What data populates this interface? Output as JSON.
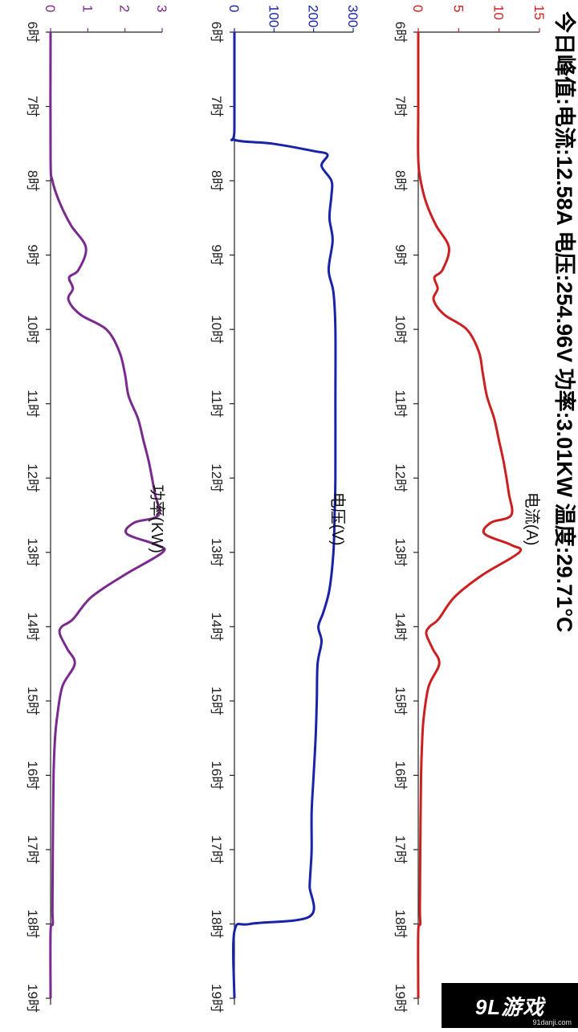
{
  "summary": "今日峰值:电流:12.58A   电压:254.96V   功率:3.01KW   温度:29.71°C",
  "time_ticks": [
    "6时",
    "7时",
    "8时",
    "9时",
    "10时",
    "11时",
    "12时",
    "13时",
    "14时",
    "15时",
    "16时",
    "17时",
    "18时",
    "19时"
  ],
  "watermark": {
    "logo": "9L游戏",
    "site": "91danji.com"
  },
  "chart_data": [
    {
      "type": "line",
      "title": "电流(A)",
      "color": "#cc1f1f",
      "ylim": [
        0,
        15
      ],
      "yticks": [
        0,
        5,
        10,
        15
      ],
      "xlim": [
        6,
        19
      ],
      "x": [
        6,
        7,
        7.7,
        8,
        8.3,
        8.6,
        8.9,
        9.2,
        9.3,
        9.45,
        9.6,
        9.8,
        10.0,
        10.3,
        10.6,
        10.9,
        11.2,
        11.5,
        11.8,
        12.2,
        12.5,
        12.6,
        12.75,
        12.9,
        13.0,
        13.3,
        13.6,
        13.9,
        14.0,
        14.1,
        14.3,
        14.5,
        14.8,
        15.2,
        15.5,
        16,
        17,
        17.8,
        18.0,
        18.1,
        19
      ],
      "values": [
        0,
        0,
        0,
        0.3,
        1.0,
        2.2,
        3.8,
        3.0,
        2.0,
        2.4,
        1.9,
        3.2,
        6.0,
        7.5,
        8.0,
        8.5,
        9.4,
        10.0,
        10.6,
        11.2,
        11.5,
        9.0,
        8.2,
        11.5,
        12.5,
        8.0,
        4.5,
        2.5,
        1.4,
        1.0,
        1.8,
        2.6,
        1.3,
        0.7,
        0.5,
        0.35,
        0.25,
        0.2,
        0.25,
        0,
        0
      ]
    },
    {
      "type": "line",
      "title": "电压(V)",
      "color": "#1a22a8",
      "ylim": [
        0,
        300
      ],
      "yticks": [
        0,
        100,
        200,
        300
      ],
      "xlim": [
        6,
        19
      ],
      "x": [
        6,
        7.3,
        7.45,
        7.5,
        7.6,
        7.65,
        7.8,
        8.0,
        8.2,
        8.5,
        8.8,
        9.2,
        9.5,
        10.0,
        11,
        12,
        12.5,
        13.0,
        13.5,
        13.8,
        14.0,
        14.2,
        14.5,
        15.0,
        15.5,
        16.0,
        16.5,
        17.0,
        17.3,
        17.5,
        17.9,
        18.0,
        18.1,
        19
      ],
      "values": [
        0,
        0,
        0,
        95,
        200,
        235,
        220,
        245,
        245,
        240,
        248,
        238,
        250,
        255,
        255,
        255,
        253,
        250,
        240,
        225,
        212,
        220,
        210,
        208,
        205,
        200,
        195,
        195,
        192,
        190,
        190,
        40,
        0,
        0
      ]
    },
    {
      "type": "line",
      "title": "功率(KW)",
      "color": "#7a2a8e",
      "ylim": [
        0,
        3
      ],
      "yticks": [
        0,
        1,
        2,
        3
      ],
      "xlim": [
        6,
        19
      ],
      "x": [
        6,
        7.7,
        8.0,
        8.3,
        8.6,
        8.9,
        9.2,
        9.3,
        9.45,
        9.6,
        9.8,
        10.0,
        10.3,
        10.6,
        10.9,
        11.2,
        11.5,
        11.8,
        12.2,
        12.5,
        12.6,
        12.75,
        12.9,
        13.0,
        13.3,
        13.6,
        13.9,
        14.0,
        14.1,
        14.3,
        14.5,
        14.8,
        15.2,
        15.5,
        16,
        17,
        17.8,
        18.0,
        18.1,
        19
      ],
      "values": [
        0,
        0,
        0.05,
        0.25,
        0.55,
        0.95,
        0.75,
        0.5,
        0.6,
        0.48,
        0.8,
        1.5,
        1.85,
        2.0,
        2.1,
        2.35,
        2.5,
        2.65,
        2.8,
        2.9,
        2.25,
        2.05,
        2.85,
        3.01,
        2.0,
        1.1,
        0.6,
        0.3,
        0.25,
        0.45,
        0.65,
        0.32,
        0.18,
        0.12,
        0.08,
        0.06,
        0.05,
        0.06,
        0,
        0
      ]
    }
  ]
}
